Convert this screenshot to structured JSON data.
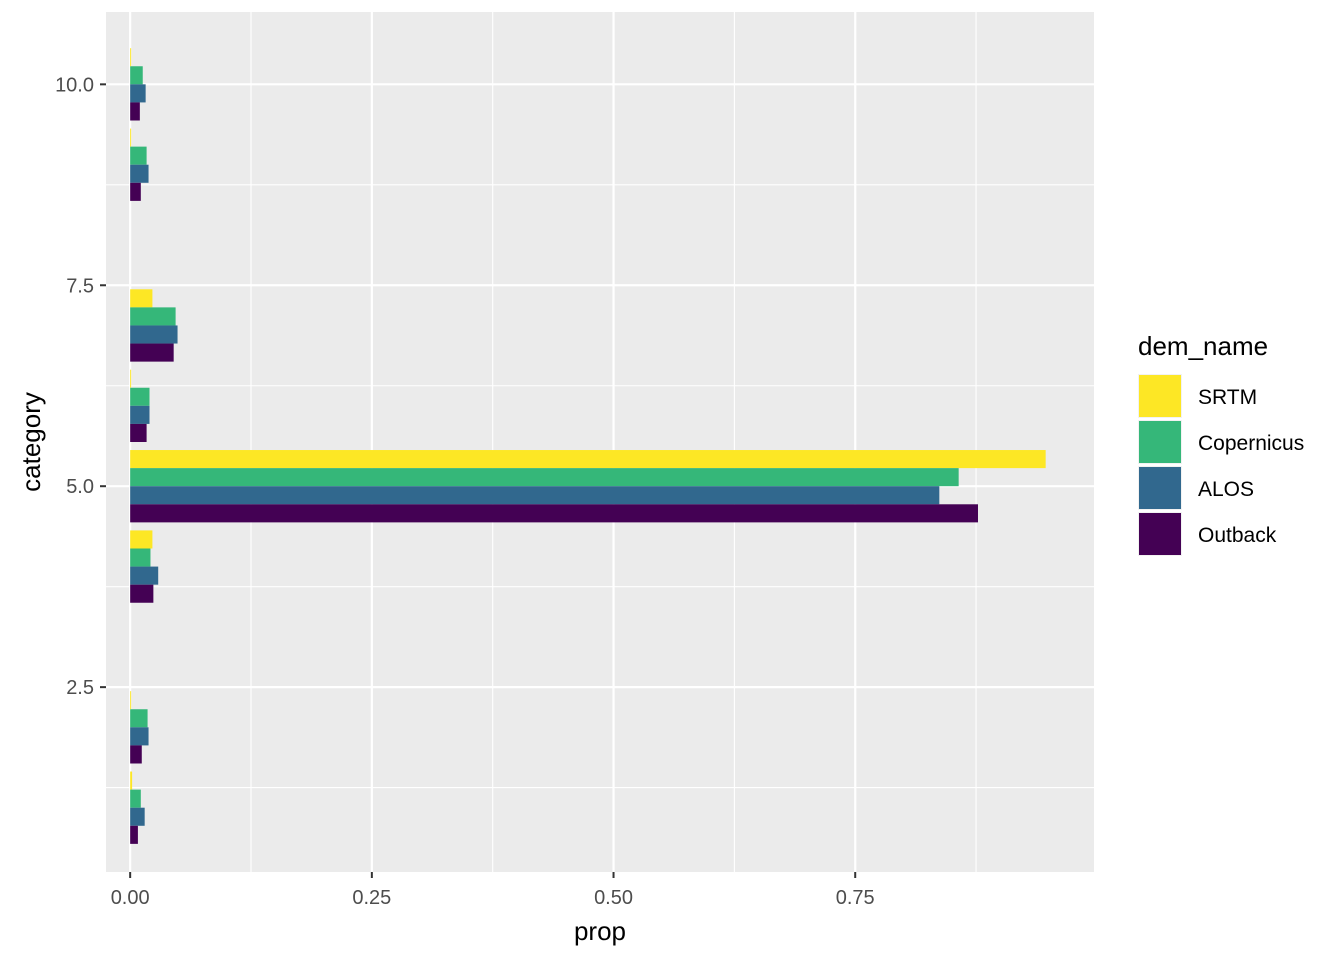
{
  "chart_data": {
    "type": "bar",
    "orientation": "horizontal",
    "xlabel": "prop",
    "ylabel": "category",
    "xlim": [
      -0.025,
      0.997
    ],
    "ylim": [
      0.2,
      10.9
    ],
    "x_ticks": [
      0.0,
      0.25,
      0.5,
      0.75
    ],
    "x_tick_labels": [
      "0.00",
      "0.25",
      "0.50",
      "0.75"
    ],
    "y_ticks": [
      2.5,
      5.0,
      7.5,
      10.0
    ],
    "y_tick_labels": [
      "2.5",
      "5.0",
      "7.5",
      "10.0"
    ],
    "grid": true,
    "background": "#ebebeb",
    "legend": {
      "title": "dem_name",
      "position": "right"
    },
    "categories": [
      1,
      2,
      4,
      5,
      6,
      7,
      9,
      10
    ],
    "series": [
      {
        "name": "SRTM",
        "color": "#fde725",
        "values": [
          0.002,
          0.001,
          0.023,
          0.947,
          0.001,
          0.023,
          0.001,
          0.001
        ]
      },
      {
        "name": "Copernicus",
        "color": "#35b779",
        "values": [
          0.011,
          0.018,
          0.021,
          0.857,
          0.02,
          0.047,
          0.017,
          0.013
        ]
      },
      {
        "name": "ALOS",
        "color": "#31688e",
        "values": [
          0.015,
          0.019,
          0.029,
          0.837,
          0.02,
          0.049,
          0.019,
          0.016
        ]
      },
      {
        "name": "Outback",
        "color": "#440154",
        "values": [
          0.008,
          0.012,
          0.024,
          0.877,
          0.017,
          0.045,
          0.011,
          0.01
        ]
      }
    ]
  }
}
